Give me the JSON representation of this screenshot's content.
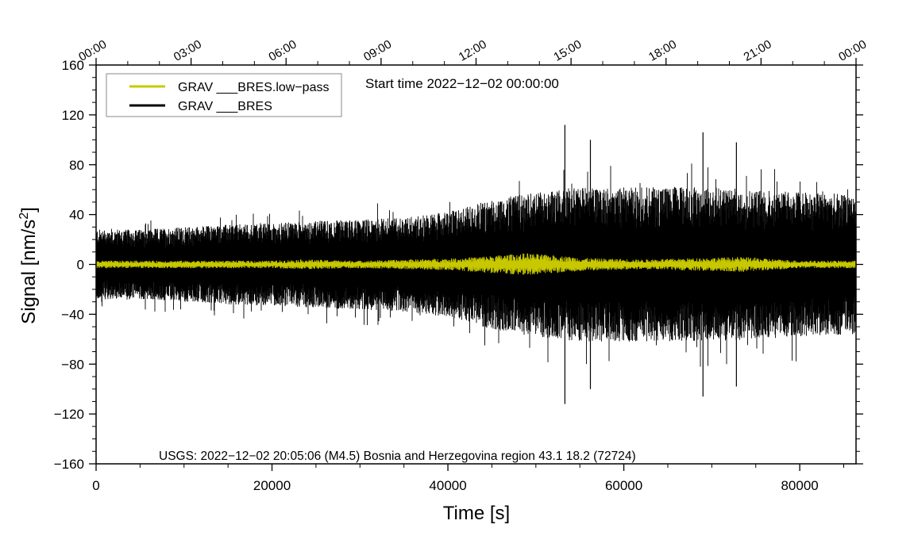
{
  "chart_data": {
    "type": "line",
    "title": "Start time 2022−12−02 00:00:00",
    "xlabel": "Time [s]",
    "ylabel": "Signal [nm/s²]",
    "xlim": [
      0,
      86400
    ],
    "ylim": [
      -160,
      160
    ],
    "x_ticks": [
      0,
      20000,
      40000,
      60000,
      80000
    ],
    "x_tick_labels": [
      "0",
      "20000",
      "40000",
      "60000",
      "80000"
    ],
    "y_ticks": [
      -160,
      -120,
      -80,
      -40,
      0,
      40,
      80,
      120,
      160
    ],
    "y_tick_labels": [
      "−160",
      "−120",
      "−80",
      "−40",
      "0",
      "40",
      "80",
      "120",
      "160"
    ],
    "top_axis": {
      "ticks": [
        0,
        10800,
        21600,
        32400,
        43200,
        54000,
        64800,
        75600,
        86400
      ],
      "labels": [
        "00:00",
        "03:00",
        "06:00",
        "09:00",
        "12:00",
        "15:00",
        "18:00",
        "21:00",
        "00:00"
      ]
    },
    "legend": {
      "position": "top-left",
      "entries": [
        {
          "label": "GRAV ___BRES.low−pass",
          "color": "#c8c800"
        },
        {
          "label": "GRAV ___BRES",
          "color": "#000000"
        }
      ]
    },
    "annotation": "USGS: 2022−12−02 20:05:06 (M4.5) Bosnia and Herzegovina region 43.1 18.2 (72724)",
    "series": [
      {
        "name": "GRAV ___BRES",
        "color": "#000000",
        "envelope_x": [
          0,
          5000,
          10000,
          15000,
          20000,
          25000,
          30000,
          35000,
          40000,
          45000,
          50000,
          55000,
          60000,
          65000,
          70000,
          75000,
          80000,
          86400
        ],
        "envelope_amplitude": [
          28,
          28,
          30,
          32,
          33,
          35,
          36,
          38,
          42,
          52,
          58,
          62,
          62,
          62,
          62,
          60,
          58,
          56
        ],
        "peaks": [
          {
            "x": 53300,
            "max": 112,
            "min": -112
          },
          {
            "x": 56200,
            "max": 100,
            "min": -100
          },
          {
            "x": 69000,
            "max": 106,
            "min": -106
          },
          {
            "x": 72800,
            "max": 98,
            "min": -98
          }
        ]
      },
      {
        "name": "GRAV ___BRES.low−pass",
        "color": "#c8c800",
        "envelope_x": [
          0,
          10000,
          20000,
          23500,
          30000,
          41000,
          49000,
          56000,
          62000,
          73500,
          80000,
          86400
        ],
        "envelope_amplitude": [
          3,
          3,
          3,
          4,
          3,
          5,
          9,
          5,
          4,
          6,
          3,
          3
        ]
      }
    ]
  }
}
